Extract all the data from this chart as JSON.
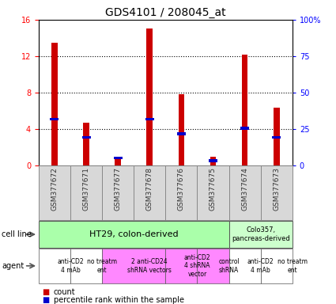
{
  "title": "GDS4101 / 208045_at",
  "samples": [
    "GSM377672",
    "GSM377671",
    "GSM377677",
    "GSM377678",
    "GSM377676",
    "GSM377675",
    "GSM377674",
    "GSM377673"
  ],
  "count_values": [
    13.5,
    4.7,
    1.0,
    15.0,
    7.8,
    1.0,
    12.2,
    6.4
  ],
  "percentile_values": [
    5.1,
    3.1,
    0.85,
    5.1,
    3.5,
    0.55,
    4.1,
    3.1
  ],
  "bar_color": "#cc0000",
  "pct_color": "#0000cc",
  "ylim": [
    0,
    16
  ],
  "yticks": [
    0,
    4,
    8,
    12,
    16
  ],
  "y2ticks_labels": [
    "0",
    "25",
    "50",
    "75",
    "100%"
  ],
  "plot_bg": "#ffffff",
  "bg_color": "#ffffff",
  "bar_width": 0.55,
  "title_fontsize": 10,
  "tick_fontsize": 7,
  "sample_bg": "#d0d0d0",
  "cell_line_ht29_color": "#aaffaa",
  "cell_line_colo_color": "#ccffcc",
  "agent_white": "#ffffff",
  "agent_pink": "#ff88ff",
  "agent_data": [
    {
      "span": [
        0,
        1
      ],
      "label": "anti-CD2\n4 mAb",
      "color": "#ffffff"
    },
    {
      "span": [
        1,
        2
      ],
      "label": "no treatm\nent",
      "color": "#ffffff"
    },
    {
      "span": [
        2,
        4
      ],
      "label": "2 anti-CD24\nshRNA vectors",
      "color": "#ff88ff"
    },
    {
      "span": [
        4,
        5
      ],
      "label": "anti-CD2\n4 shRNA\nvector",
      "color": "#ff88ff"
    },
    {
      "span": [
        5,
        6
      ],
      "label": "control\nshRNA",
      "color": "#ff88ff"
    },
    {
      "span": [
        6,
        7
      ],
      "label": "anti-CD2\n4 mAb",
      "color": "#ffffff"
    },
    {
      "span": [
        7,
        8
      ],
      "label": "no treatm\nent",
      "color": "#ffffff"
    }
  ]
}
